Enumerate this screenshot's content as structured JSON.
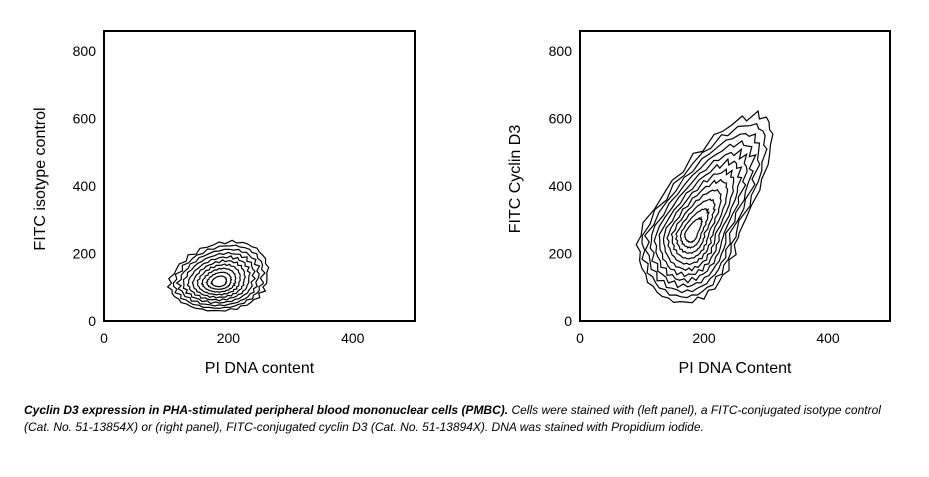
{
  "chart_data": [
    {
      "type": "contour",
      "panel": "left",
      "xlabel": "PI DNA content",
      "ylabel": "FITC isotype control",
      "xlim": [
        0,
        500
      ],
      "ylim": [
        0,
        860
      ],
      "xticks": [
        0,
        200,
        400
      ],
      "yticks": [
        0,
        200,
        400,
        600,
        800
      ],
      "xtick_labels": [
        "0",
        "200",
        "400"
      ],
      "ytick_labels": [
        "0",
        "200",
        "400",
        "600",
        "800"
      ],
      "population": {
        "center_x": 185,
        "center_y": 115,
        "x_range": [
          105,
          260
        ],
        "y_range": [
          30,
          235
        ],
        "levels": 10
      }
    },
    {
      "type": "contour",
      "panel": "right",
      "xlabel": "PI DNA Content",
      "ylabel": "FITC Cyclin D3",
      "xlim": [
        0,
        500
      ],
      "ylim": [
        0,
        860
      ],
      "xticks": [
        0,
        200,
        400
      ],
      "yticks": [
        0,
        200,
        400,
        600,
        800
      ],
      "xtick_labels": [
        "0",
        "200",
        "400"
      ],
      "ytick_labels": [
        "0",
        "200",
        "400",
        "600",
        "800"
      ],
      "population": {
        "center_x": 180,
        "center_y": 260,
        "x_range": [
          95,
          255
        ],
        "y_range": [
          55,
          610
        ],
        "levels": 12
      }
    }
  ],
  "caption": {
    "lead": "Cyclin D3 expression in PHA-stimulated peripheral blood mononuclear cells (PMBC).",
    "body": " Cells were stained with (left panel), a FITC-conjugated isotype control (Cat. No. 51-13854X) or (right panel), FITC-conjugated cyclin D3 (Cat. No. 51-13894X). DNA was stained with Propidium iodide."
  }
}
